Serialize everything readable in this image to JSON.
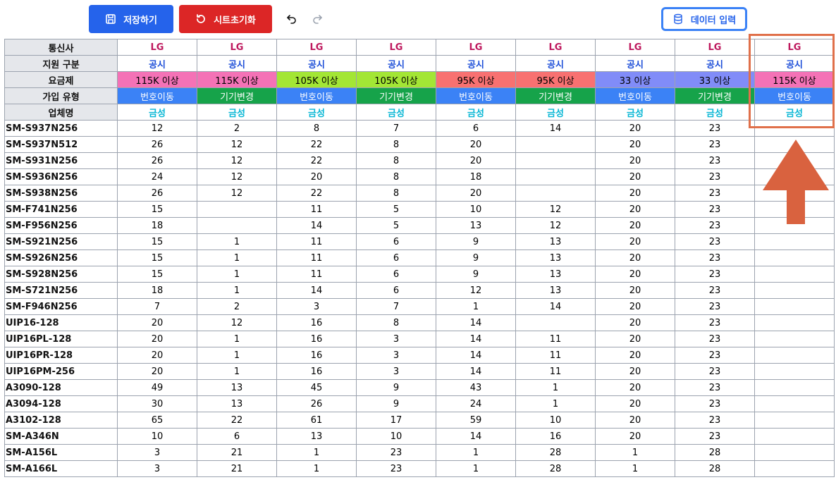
{
  "toolbar": {
    "save_label": "저장하기",
    "reset_label": "시트초기화",
    "data_input_label": "데이터 입력",
    "icons": [
      "save-icon",
      "reset-icon",
      "undo-icon",
      "redo-icon",
      "database-icon"
    ]
  },
  "colors": {
    "save": "#2563eb",
    "reset": "#dc2626",
    "plan_115k": "#f472b6",
    "plan_105k": "#a3e635",
    "plan_95k": "#f87171",
    "plan_33": "#818cf8",
    "join_portin": "#3b82f6",
    "join_change": "#16a34a",
    "highlight": "#e0704a"
  },
  "header_labels": [
    "통신사",
    "지원 구분",
    "요금제",
    "가입 유형",
    "업체명"
  ],
  "columns": [
    {
      "carrier": "LG",
      "support": "공시",
      "plan": "115K 이상",
      "plan_color": "#f472b6",
      "join": "번호이동",
      "join_color": "#3b82f6",
      "vendor": "금성"
    },
    {
      "carrier": "LG",
      "support": "공시",
      "plan": "115K 이상",
      "plan_color": "#f472b6",
      "join": "기기변경",
      "join_color": "#16a34a",
      "vendor": "금성"
    },
    {
      "carrier": "LG",
      "support": "공시",
      "plan": "105K 이상",
      "plan_color": "#a3e635",
      "join": "번호이동",
      "join_color": "#3b82f6",
      "vendor": "금성"
    },
    {
      "carrier": "LG",
      "support": "공시",
      "plan": "105K 이상",
      "plan_color": "#a3e635",
      "join": "기기변경",
      "join_color": "#16a34a",
      "vendor": "금성"
    },
    {
      "carrier": "LG",
      "support": "공시",
      "plan": "95K 이상",
      "plan_color": "#f87171",
      "join": "번호이동",
      "join_color": "#3b82f6",
      "vendor": "금성"
    },
    {
      "carrier": "LG",
      "support": "공시",
      "plan": "95K 이상",
      "plan_color": "#f87171",
      "join": "기기변경",
      "join_color": "#16a34a",
      "vendor": "금성"
    },
    {
      "carrier": "LG",
      "support": "공시",
      "plan": "33 이상",
      "plan_color": "#818cf8",
      "join": "번호이동",
      "join_color": "#3b82f6",
      "vendor": "금성"
    },
    {
      "carrier": "LG",
      "support": "공시",
      "plan": "33 이상",
      "plan_color": "#818cf8",
      "join": "기기변경",
      "join_color": "#16a34a",
      "vendor": "금성"
    },
    {
      "carrier": "LG",
      "support": "공시",
      "plan": "115K 이상",
      "plan_color": "#f472b6",
      "join": "번호이동",
      "join_color": "#3b82f6",
      "vendor": "금성"
    }
  ],
  "rows": [
    {
      "model": "SM-S937N256",
      "values": [
        "12",
        "2",
        "8",
        "7",
        "6",
        "14",
        "20",
        "23",
        ""
      ]
    },
    {
      "model": "SM-S937N512",
      "values": [
        "26",
        "12",
        "22",
        "8",
        "20",
        "",
        "20",
        "23",
        ""
      ]
    },
    {
      "model": "SM-S931N256",
      "values": [
        "26",
        "12",
        "22",
        "8",
        "20",
        "",
        "20",
        "23",
        ""
      ]
    },
    {
      "model": "SM-S936N256",
      "values": [
        "24",
        "12",
        "20",
        "8",
        "18",
        "",
        "20",
        "23",
        ""
      ]
    },
    {
      "model": "SM-S938N256",
      "values": [
        "26",
        "12",
        "22",
        "8",
        "20",
        "",
        "20",
        "23",
        ""
      ]
    },
    {
      "model": "SM-F741N256",
      "values": [
        "15",
        "",
        "11",
        "5",
        "10",
        "12",
        "20",
        "23",
        ""
      ]
    },
    {
      "model": "SM-F956N256",
      "values": [
        "18",
        "",
        "14",
        "5",
        "13",
        "12",
        "20",
        "23",
        ""
      ]
    },
    {
      "model": "SM-S921N256",
      "values": [
        "15",
        "1",
        "11",
        "6",
        "9",
        "13",
        "20",
        "23",
        ""
      ]
    },
    {
      "model": "SM-S926N256",
      "values": [
        "15",
        "1",
        "11",
        "6",
        "9",
        "13",
        "20",
        "23",
        ""
      ]
    },
    {
      "model": "SM-S928N256",
      "values": [
        "15",
        "1",
        "11",
        "6",
        "9",
        "13",
        "20",
        "23",
        ""
      ]
    },
    {
      "model": "SM-S721N256",
      "values": [
        "18",
        "1",
        "14",
        "6",
        "12",
        "13",
        "20",
        "23",
        ""
      ]
    },
    {
      "model": "SM-F946N256",
      "values": [
        "7",
        "2",
        "3",
        "7",
        "1",
        "14",
        "20",
        "23",
        ""
      ]
    },
    {
      "model": "UIP16-128",
      "values": [
        "20",
        "12",
        "16",
        "8",
        "14",
        "",
        "20",
        "23",
        ""
      ]
    },
    {
      "model": "UIP16PL-128",
      "values": [
        "20",
        "1",
        "16",
        "3",
        "14",
        "11",
        "20",
        "23",
        ""
      ]
    },
    {
      "model": "UIP16PR-128",
      "values": [
        "20",
        "1",
        "16",
        "3",
        "14",
        "11",
        "20",
        "23",
        ""
      ]
    },
    {
      "model": "UIP16PM-256",
      "values": [
        "20",
        "1",
        "16",
        "3",
        "14",
        "11",
        "20",
        "23",
        ""
      ]
    },
    {
      "model": "A3090-128",
      "values": [
        "49",
        "13",
        "45",
        "9",
        "43",
        "1",
        "20",
        "23",
        ""
      ]
    },
    {
      "model": "A3094-128",
      "values": [
        "30",
        "13",
        "26",
        "9",
        "24",
        "1",
        "20",
        "23",
        ""
      ]
    },
    {
      "model": "A3102-128",
      "values": [
        "65",
        "22",
        "61",
        "17",
        "59",
        "10",
        "20",
        "23",
        ""
      ]
    },
    {
      "model": "SM-A346N",
      "values": [
        "10",
        "6",
        "13",
        "10",
        "14",
        "16",
        "20",
        "23",
        ""
      ]
    },
    {
      "model": "SM-A156L",
      "values": [
        "3",
        "21",
        "1",
        "23",
        "1",
        "28",
        "1",
        "28",
        ""
      ]
    },
    {
      "model": "SM-A166L",
      "values": [
        "3",
        "21",
        "1",
        "23",
        "1",
        "28",
        "1",
        "28",
        ""
      ]
    }
  ]
}
